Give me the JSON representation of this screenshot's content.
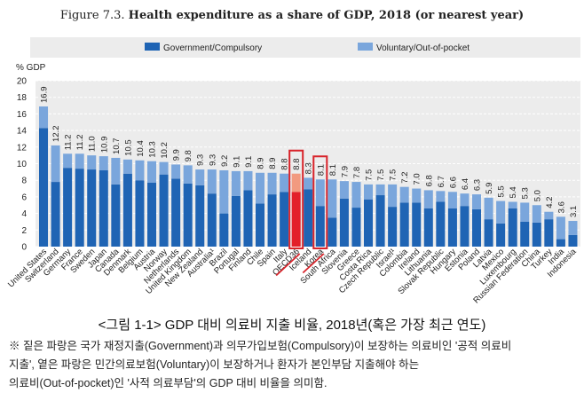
{
  "chart_data": {
    "type": "bar",
    "stacked": true,
    "title_prefix": "Figure 7.3.",
    "title": "Health expenditure as a share of GDP, 2018 (or nearest year)",
    "ylabel": "% GDP",
    "ylim": [
      0,
      20
    ],
    "yticks": [
      0,
      2,
      4,
      6,
      8,
      10,
      12,
      14,
      16,
      18,
      20
    ],
    "grid": true,
    "legend_position": "top",
    "categories": [
      "United States",
      "Switzerland",
      "Germany",
      "France",
      "Sweden",
      "Japan",
      "Canada",
      "Denmark",
      "Belgium",
      "Austria",
      "Norway",
      "Netherlands",
      "United Kingdom",
      "New Zealand",
      "Australia¹",
      "Brazil",
      "Portugal",
      "Finland",
      "Chile",
      "Spain",
      "Italy",
      "OECD36",
      "Iceland",
      "Korea",
      "South Africa",
      "Slovenia",
      "Greece",
      "Costa Rica",
      "Czech Republic",
      "Israel¹",
      "Colombia",
      "Ireland",
      "Lithuania",
      "Slovak Republic",
      "Hungary",
      "Estonia",
      "Poland",
      "Latvia",
      "Mexico",
      "Luxembourg",
      "Russian Federation",
      "China",
      "Turkey",
      "India",
      "Indonesia"
    ],
    "totals": [
      16.9,
      12.2,
      11.2,
      11.2,
      11.0,
      10.9,
      10.7,
      10.5,
      10.4,
      10.3,
      10.2,
      9.9,
      9.8,
      9.3,
      9.3,
      9.2,
      9.1,
      9.1,
      8.9,
      8.9,
      8.8,
      8.8,
      8.3,
      8.1,
      8.1,
      7.9,
      7.8,
      7.5,
      7.5,
      7.5,
      7.2,
      7.0,
      6.8,
      6.7,
      6.6,
      6.4,
      6.3,
      5.9,
      5.5,
      5.4,
      5.3,
      5.0,
      4.2,
      3.6,
      3.1
    ],
    "total_labels": [
      "16.9",
      "12.2",
      "11.2",
      "11.2",
      "11.0",
      "10.9",
      "10.7",
      "10.5",
      "10.4",
      "10.3",
      "10.2",
      "9.9",
      "9.8",
      "9.3",
      "9.3",
      "9.2",
      "9.1",
      "9.1",
      "8.9",
      "8.9",
      "8.8",
      "8.8",
      "8.3",
      "8.1",
      "8.1",
      "7.9",
      "7.8",
      "7.5",
      "7.5",
      "7.5",
      "7.2",
      "7.0",
      "6.8",
      "6.7",
      "6.6",
      "6.4",
      "6.3",
      "5.9",
      "5.5",
      "5.4",
      "5.3",
      "5.0",
      "4.2",
      "3.6",
      "3.1"
    ],
    "series": [
      {
        "name": "Government/Compulsory",
        "color": "#1f64b4",
        "values": [
          14.3,
          7.8,
          9.5,
          9.4,
          9.3,
          9.2,
          7.5,
          8.8,
          8.0,
          7.7,
          8.7,
          8.2,
          7.6,
          7.4,
          6.4,
          4.0,
          6.1,
          6.8,
          5.2,
          6.3,
          6.6,
          6.6,
          6.9,
          4.9,
          3.5,
          5.8,
          4.7,
          5.7,
          6.2,
          4.8,
          5.3,
          5.3,
          4.6,
          5.4,
          4.6,
          4.9,
          4.5,
          3.3,
          2.8,
          4.6,
          3.0,
          2.9,
          3.3,
          0.9,
          1.4
        ]
      },
      {
        "name": "Voluntary/Out-of-pocket",
        "color": "#7aa6dc",
        "values": [
          2.6,
          4.4,
          1.7,
          1.8,
          1.7,
          1.7,
          3.2,
          1.7,
          2.4,
          2.6,
          1.5,
          1.7,
          2.2,
          1.9,
          2.9,
          5.2,
          3.0,
          2.3,
          3.7,
          2.6,
          2.2,
          2.2,
          1.4,
          3.2,
          4.6,
          2.1,
          3.1,
          1.8,
          1.3,
          2.7,
          1.9,
          1.7,
          2.2,
          1.3,
          2.0,
          1.5,
          1.8,
          2.6,
          2.7,
          0.8,
          2.3,
          2.1,
          0.9,
          2.7,
          1.7
        ]
      }
    ],
    "highlighted": [
      "OECD36",
      "Korea"
    ],
    "highlight_colors": {
      "government": "#e3202a",
      "voluntary": "#f29a80",
      "box": "#d8232a"
    }
  },
  "caption": "<그림 1-1>  GDP 대비 의료비 지출 비율, 2018년(혹은 가장 최근 연도)",
  "note_lines": [
    "※ 짙은 파랑은 국가 재정지출(Government)과 의무가입보험(Compulsory)이 보장하는 의료비인 '공적 의료비",
    "지출', 옅은 파랑은 민간의료보험(Voluntary)이 보장하거나 환자가 본인부담 지출해야 하는",
    "의료비(Out-of-pocket)인 '사적 의료부담'의 GDP 대비 비율을 의미함."
  ]
}
